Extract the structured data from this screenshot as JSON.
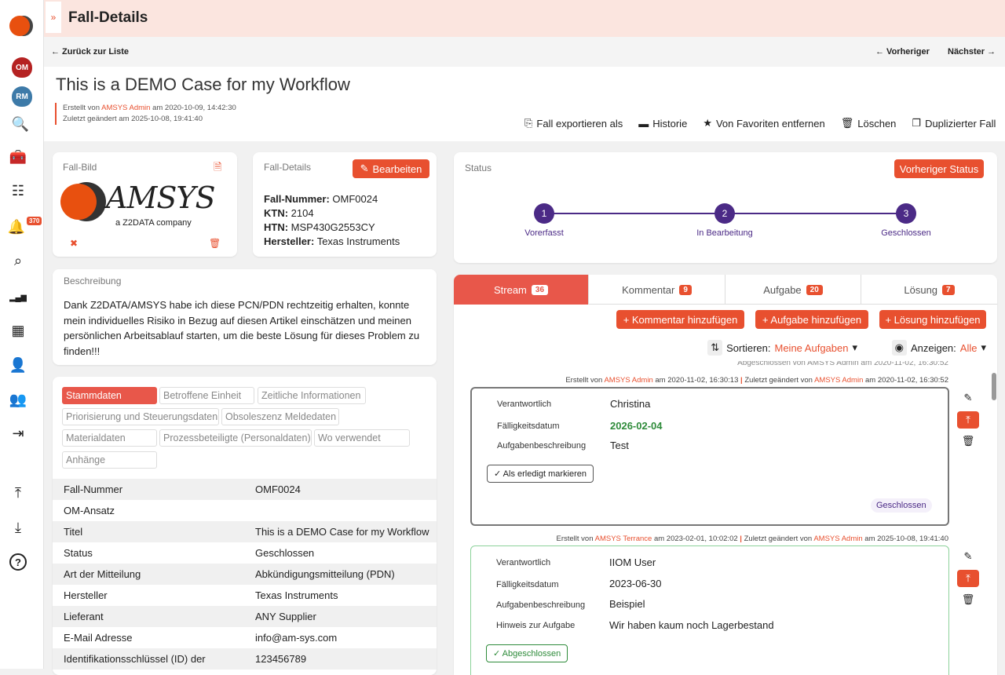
{
  "sidebar": {
    "items": [
      "logo",
      "om-module",
      "rm-module",
      "rm-search",
      "toolbox",
      "checklist",
      "notifications",
      "search",
      "analytics",
      "dashboard",
      "user",
      "users-settings",
      "logout",
      "upload",
      "download",
      "help"
    ],
    "notification_count": "370"
  },
  "header": {
    "title": "Fall-Details",
    "expand": "»"
  },
  "nav": {
    "back": "← Zurück zur Liste",
    "prev": "← Vorheriger",
    "next": "Nächster →"
  },
  "case": {
    "title": "This is a DEMO Case for my Workflow",
    "created_prefix": "Erstellt von",
    "created_by": "AMSYS Admin",
    "created_at": "am 2020-10-09, 14:42:30",
    "modified": "Zuletzt geändert am 2025-10-08, 19:41:40"
  },
  "toolbar": {
    "export": "Fall exportieren als",
    "history": "Historie",
    "unfavorite": "Von Favoriten entfernen",
    "delete": "Löschen",
    "duplicate": "Duplizierter Fall"
  },
  "image_card": {
    "title": "Fall-Bild",
    "logo_text": "AMSYS",
    "logo_sub": "a Z2DATA company"
  },
  "details_card": {
    "title": "Fall-Details",
    "edit": "Bearbeiten",
    "fields": [
      {
        "label": "Fall-Nummer:",
        "value": "OMF0024"
      },
      {
        "label": "KTN:",
        "value": "2104"
      },
      {
        "label": "HTN:",
        "value": "MSP430G2553CY"
      },
      {
        "label": "Hersteller:",
        "value": "Texas Instruments"
      }
    ]
  },
  "description": {
    "title": "Beschreibung",
    "text": "Dank Z2DATA/AMSYS  habe ich diese PCN/PDN rechtzeitig erhalten, konnte mein individuelles Risiko in Bezug auf diesen Artikel einschätzen und meinen persönlichen Arbeitsablauf starten, um die beste Lösung für dieses Problem zu finden!!!"
  },
  "data_tabs": [
    "Stammdaten",
    "Betroffene Einheit",
    "Zeitliche Informationen",
    "Priorisierung und Steuerungsdaten",
    "Obsoleszenz Meldedaten",
    "Materialdaten",
    "Prozessbeteiligte (Personaldaten)",
    "Wo verwendet",
    "Anhänge"
  ],
  "master_data": [
    {
      "label": "Fall-Nummer",
      "value": "OMF0024"
    },
    {
      "label": "OM-Ansatz",
      "value": ""
    },
    {
      "label": "Titel",
      "value": "This is a DEMO Case for my Workflow"
    },
    {
      "label": "Status",
      "value": "Geschlossen"
    },
    {
      "label": "Art der Mitteilung",
      "value": "Abkündigungsmitteilung (PDN)"
    },
    {
      "label": "Hersteller",
      "value": "Texas Instruments"
    },
    {
      "label": "Lieferant",
      "value": "ANY Supplier"
    },
    {
      "label": "E-Mail Adresse",
      "value": "info@am-sys.com"
    },
    {
      "label": "Identifikationsschlüssel (ID) der",
      "value": "123456789"
    }
  ],
  "status": {
    "title": "Status",
    "prev_button": "Vorheriger Status",
    "steps": [
      {
        "n": "1",
        "label": "Vorerfasst"
      },
      {
        "n": "2",
        "label": "In Bearbeitung"
      },
      {
        "n": "3",
        "label": "Geschlossen"
      }
    ],
    "current_step": 3
  },
  "stream_tabs": [
    {
      "label": "Stream",
      "count": "36"
    },
    {
      "label": "Kommentar",
      "count": "9"
    },
    {
      "label": "Aufgabe",
      "count": "20"
    },
    {
      "label": "Lösung",
      "count": "7"
    }
  ],
  "actions": {
    "add_comment": "+ Kommentar hinzufügen",
    "add_task": "+ Aufgabe hinzufügen",
    "add_solution": "+ Lösung hinzufügen"
  },
  "filters": {
    "sort_label": "Sortieren:",
    "sort_value": "Meine Aufgaben",
    "show_label": "Anzeigen:",
    "show_value": "Alle"
  },
  "stream": {
    "cut_line": "Abgeschlossen von AMSYS Admin am 2020-11-02, 16:30:52",
    "tasks": [
      {
        "meta": {
          "c_prefix": "Erstellt von",
          "c_by": "AMSYS Admin",
          "c_at": "am 2020-11-02, 16:30:13",
          "m_prefix": "Zuletzt geändert von",
          "m_by": "AMSYS Admin",
          "m_at": "am 2020-11-02, 16:30:52"
        },
        "rows": [
          {
            "label": "Verantwortlich",
            "value": "Christina"
          },
          {
            "label": "Fälligkeitsdatum",
            "value": "2026-02-04"
          },
          {
            "label": "Aufgabenbeschreibung",
            "value": "Test"
          }
        ],
        "button": "✓ Als erledigt markieren",
        "status": "Geschlossen"
      },
      {
        "meta": {
          "c_prefix": "Erstellt von",
          "c_by": "AMSYS Terrance",
          "c_at": "am 2023-02-01, 10:02:02",
          "m_prefix": "Zuletzt geändert von",
          "m_by": "AMSYS Admin",
          "m_at": "am 2025-10-08, 19:41:40"
        },
        "rows": [
          {
            "label": "Verantwortlich",
            "value": "IIOM User"
          },
          {
            "label": "Fälligkeitsdatum",
            "value": "2023-06-30"
          },
          {
            "label": "Aufgabenbeschreibung",
            "value": "Beispiel"
          },
          {
            "label": "Hinweis zur Aufgabe",
            "value": "Wir haben kaum noch Lagerbestand"
          }
        ],
        "button": "✓ Abgeschlossen"
      }
    ]
  },
  "colors": {
    "accent": "#e8502f",
    "purple": "#4b2a86",
    "header_bg": "#fbe5df",
    "green": "#2e8b3a"
  }
}
